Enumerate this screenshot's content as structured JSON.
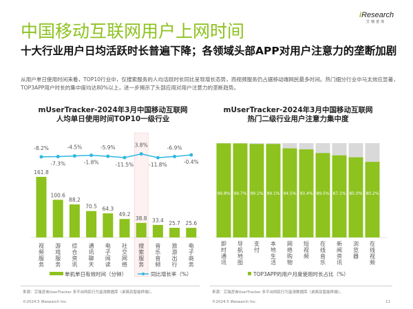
{
  "header": {
    "title": "中国移动互联网用户上网时间",
    "logo_text_main": "Research",
    "logo_text_i": "i",
    "logo_sub": "艾瑞咨询"
  },
  "subtitle": "十大行业用户日均活跃时长普遍下降；各领域头部APP对用户注意力的垄断加剧",
  "paragraph": "从用户单日使用时间来看，TOP10行业中，仅搜索服务的人均活跃时长同比呈现增长态势，而视频服务仍占据移动端网民最多时间。热门细分行业中马太效应显著，TOP3APP用户时长的集中度均达80%以上，进一步揭示了头部应用对用户注意力的垄断趋势。",
  "chart_data": [
    {
      "type": "bar",
      "title_line1": "mUserTracker-2024年3月中国移动互联网",
      "title_line2": "人均单日使用时间TOP10一级行业",
      "categories": [
        "视频服务",
        "游戏服务",
        "综合资讯",
        "通讯聊天",
        "电子阅读",
        "社交网络",
        "搜索服务",
        "音乐音频",
        "旅游出行",
        "电子商务"
      ],
      "series": [
        {
          "name": "单机单日有效时间（分钟）",
          "type": "bar",
          "values": [
            161.8,
            100.6,
            88.2,
            70.5,
            64.3,
            49.2,
            38.8,
            33.4,
            25.7,
            25.6
          ],
          "color": "#8dc21f"
        },
        {
          "name": "同比增长率（%）",
          "type": "line",
          "values": [
            -8.2,
            -7.3,
            -4.5,
            -1.8,
            -5.9,
            -11.5,
            3.8,
            -11.8,
            -6.9,
            -0.4
          ],
          "labels": [
            "-8.2%",
            "-7.3%",
            "-4.5%",
            "-1.8%",
            "-5.9%",
            "-11.5%",
            "3.8%",
            "-11.8%",
            "-6.9%",
            "-0.4%"
          ],
          "color": "#2db7e0"
        }
      ],
      "highlight": "搜索服务"
    },
    {
      "type": "bar",
      "title_line1": "mUserTracker-2024年3月中国移动互联网",
      "title_line2": "热门二级行业用户注意力集中度",
      "categories": [
        "即时通讯",
        "导航地图",
        "支付",
        "本地生活",
        "网络购物",
        "短视频",
        "在线音乐",
        "新闻资讯",
        "浏览器",
        "在线视频"
      ],
      "series": [
        {
          "name": "TOP3APP的用户月度使用时长占比（%）",
          "values": [
            99.8,
            99.7,
            99.1,
            99.1,
            94.5,
            93.4,
            89.5,
            87.1,
            85.0,
            80.2
          ],
          "labels": [
            "99.8%",
            "99.7%",
            "99.1%",
            "99.1%",
            "94.5%",
            "93.4%",
            "89.5%",
            "87.1%",
            "85.0%",
            "80.2%"
          ],
          "color": "#8dc21f"
        }
      ],
      "ylim": [
        0,
        100
      ],
      "remainder_color": "#d9d9d9"
    }
  ],
  "footer": {
    "source_left": "来源：艾瑞咨询UserTracker 多平台网民行为监测数据库（桌面及智能终端）。",
    "source_right": "来源：艾瑞咨询UserTracker 多平台网民行为监测数据库（桌面及智能终端）。",
    "copyright_left": "©2024.5 iResearch Inc.",
    "copyright_right": "©2024.5 iResearch Inc.",
    "page_number": "11"
  }
}
